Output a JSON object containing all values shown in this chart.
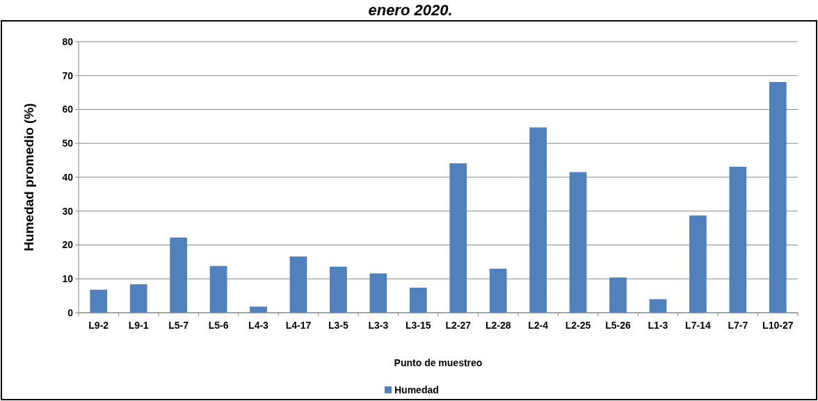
{
  "chart_data": {
    "type": "bar",
    "title": "enero 2020.",
    "xlabel": "Punto de muestreo",
    "ylabel": "Humedad promedio (%)",
    "categories": [
      "L9-2",
      "L9-1",
      "L5-7",
      "L5-6",
      "L4-3",
      "L4-17",
      "L3-5",
      "L3-3",
      "L3-15",
      "L2-27",
      "L2-28",
      "L2-4",
      "L2-25",
      "L5-26",
      "L1-3",
      "L7-14",
      "L7-7",
      "L10-27"
    ],
    "series": [
      {
        "name": "Humedad",
        "color": "#4f81bd",
        "values": [
          6.8,
          8.4,
          22.2,
          13.8,
          1.8,
          16.6,
          13.6,
          11.6,
          7.4,
          44.1,
          13.0,
          54.7,
          41.5,
          10.4,
          4.0,
          28.7,
          43.1,
          68.1
        ]
      }
    ],
    "ylim": [
      0,
      80
    ],
    "yticks": [
      0,
      10,
      20,
      30,
      40,
      50,
      60,
      70,
      80
    ],
    "grid": "y",
    "legend": "bottom"
  }
}
